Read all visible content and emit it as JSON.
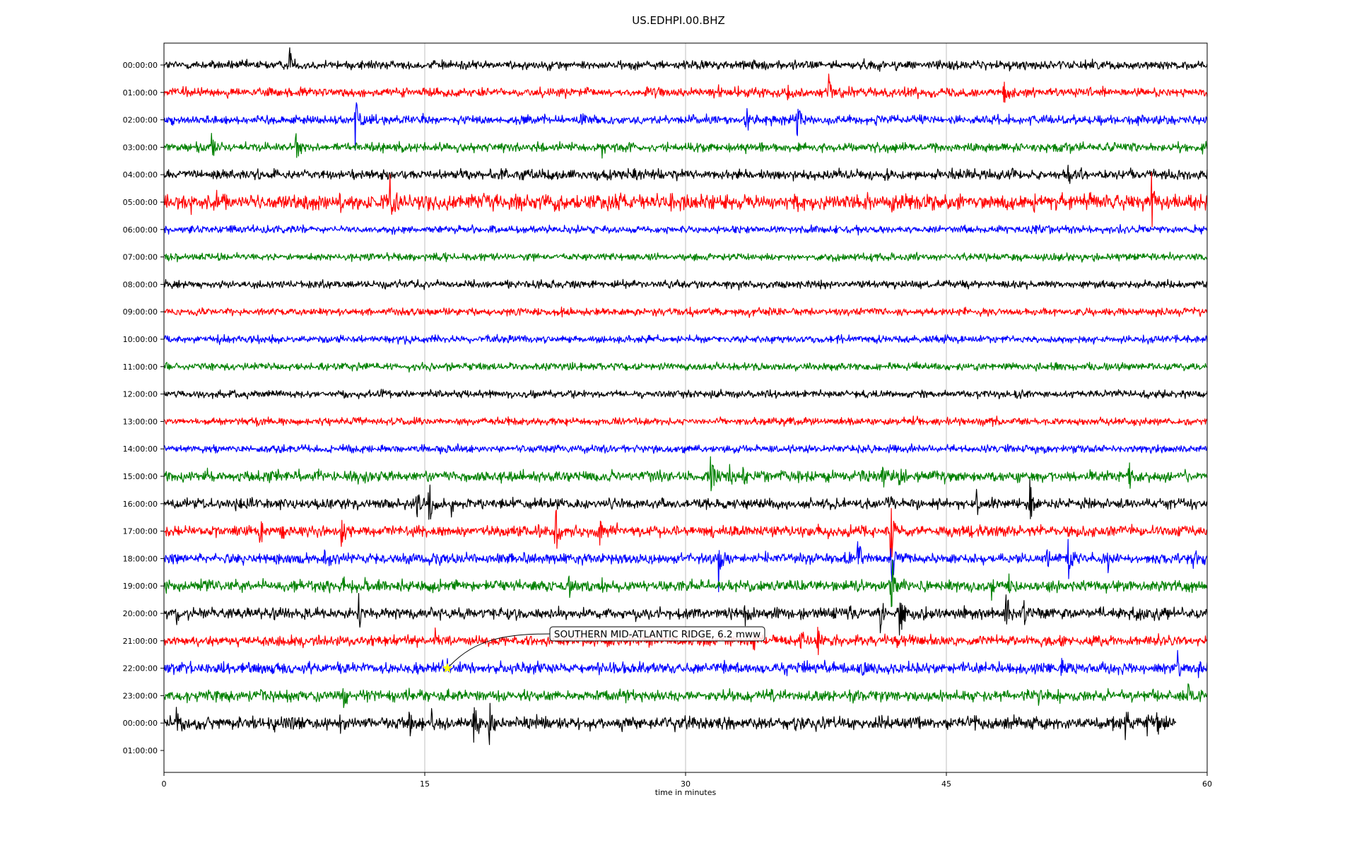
{
  "chart_data": {
    "type": "line",
    "title": "US.EDHPI.00.BHZ",
    "xlabel": "time in minutes",
    "ylabel": "",
    "xlim": [
      0,
      60
    ],
    "x_ticks": [
      "0",
      "15",
      "30",
      "45",
      "60"
    ],
    "grid": "vertical lines at x ticks",
    "colors": [
      "#000000",
      "#ff0000",
      "#0000ff",
      "#008000"
    ],
    "row_labels": [
      "00:00:00",
      "01:00:00",
      "02:00:00",
      "03:00:00",
      "04:00:00",
      "05:00:00",
      "06:00:00",
      "07:00:00",
      "08:00:00",
      "09:00:00",
      "10:00:00",
      "11:00:00",
      "12:00:00",
      "13:00:00",
      "14:00:00",
      "15:00:00",
      "16:00:00",
      "17:00:00",
      "18:00:00",
      "19:00:00",
      "20:00:00",
      "21:00:00",
      "22:00:00",
      "23:00:00",
      "00:00:00",
      "01:00:00"
    ],
    "traces": [
      {
        "row": 0,
        "end": 60,
        "noise": 0.18,
        "events": [
          {
            "t": 7.2,
            "amp": 0.55
          }
        ]
      },
      {
        "row": 1,
        "end": 60,
        "noise": 0.18,
        "events": [
          {
            "t": 31.9,
            "amp": 0.2
          },
          {
            "t": 35.9,
            "amp": 0.3
          },
          {
            "t": 38.2,
            "amp": 0.75
          },
          {
            "t": 48.3,
            "amp": 0.4
          }
        ]
      },
      {
        "row": 2,
        "end": 60,
        "noise": 0.18,
        "events": [
          {
            "t": 11.0,
            "amp": 0.9
          },
          {
            "t": 24.0,
            "amp": 0.45
          },
          {
            "t": 33.5,
            "amp": 0.5
          },
          {
            "t": 36.4,
            "amp": 0.55
          }
        ]
      },
      {
        "row": 3,
        "end": 60,
        "noise": 0.18,
        "events": [
          {
            "t": 2.7,
            "amp": 0.5
          },
          {
            "t": 7.6,
            "amp": 0.45
          },
          {
            "t": 25.1,
            "amp": 0.5
          }
        ]
      },
      {
        "row": 4,
        "end": 60,
        "noise": 0.2,
        "events": [
          {
            "t": 52.0,
            "amp": 0.3
          },
          {
            "t": 59.0,
            "amp": 0.25
          }
        ]
      },
      {
        "row": 5,
        "end": 60,
        "noise": 0.3,
        "events": [
          {
            "t": 1.5,
            "amp": 0.35
          },
          {
            "t": 3.0,
            "amp": 0.3
          },
          {
            "t": 8.1,
            "amp": 0.35
          },
          {
            "t": 13.0,
            "amp": 0.55
          },
          {
            "t": 16.0,
            "amp": 0.2
          },
          {
            "t": 29.1,
            "amp": 0.3
          },
          {
            "t": 32.4,
            "amp": 0.2
          },
          {
            "t": 40.3,
            "amp": 0.35
          },
          {
            "t": 56.8,
            "amp": 0.9
          }
        ]
      },
      {
        "row": 6,
        "end": 60,
        "noise": 0.15,
        "events": []
      },
      {
        "row": 7,
        "end": 60,
        "noise": 0.15,
        "events": []
      },
      {
        "row": 8,
        "end": 60,
        "noise": 0.15,
        "events": []
      },
      {
        "row": 9,
        "end": 60,
        "noise": 0.15,
        "events": []
      },
      {
        "row": 10,
        "end": 60,
        "noise": 0.15,
        "events": []
      },
      {
        "row": 11,
        "end": 60,
        "noise": 0.15,
        "events": []
      },
      {
        "row": 12,
        "end": 60,
        "noise": 0.15,
        "events": []
      },
      {
        "row": 13,
        "end": 60,
        "noise": 0.15,
        "events": []
      },
      {
        "row": 14,
        "end": 60,
        "noise": 0.15,
        "events": []
      },
      {
        "row": 15,
        "end": 60,
        "noise": 0.22,
        "events": [
          {
            "t": 31.4,
            "amp": 1.0
          },
          {
            "t": 32.5,
            "amp": 0.35
          },
          {
            "t": 33.3,
            "amp": 0.3
          },
          {
            "t": 36.5,
            "amp": 0.2
          },
          {
            "t": 41.3,
            "amp": 0.4
          },
          {
            "t": 42.3,
            "amp": 0.35
          },
          {
            "t": 55.5,
            "amp": 0.45
          }
        ]
      },
      {
        "row": 16,
        "end": 60,
        "noise": 0.2,
        "events": [
          {
            "t": 14.5,
            "amp": 0.6
          },
          {
            "t": 15.2,
            "amp": 0.75
          },
          {
            "t": 16.5,
            "amp": 0.3
          },
          {
            "t": 41.8,
            "amp": 0.25
          },
          {
            "t": 46.7,
            "amp": 0.55
          },
          {
            "t": 49.8,
            "amp": 0.8
          }
        ]
      },
      {
        "row": 17,
        "end": 60,
        "noise": 0.22,
        "events": [
          {
            "t": 5.5,
            "amp": 0.45
          },
          {
            "t": 6.8,
            "amp": 0.3
          },
          {
            "t": 10.2,
            "amp": 0.5
          },
          {
            "t": 22.5,
            "amp": 0.75
          },
          {
            "t": 25.0,
            "amp": 0.5
          },
          {
            "t": 41.8,
            "amp": 1.25
          }
        ]
      },
      {
        "row": 18,
        "end": 60,
        "noise": 0.2,
        "events": [
          {
            "t": 9.2,
            "amp": 0.25
          },
          {
            "t": 15.7,
            "amp": 0.3
          },
          {
            "t": 31.9,
            "amp": 0.85
          },
          {
            "t": 39.9,
            "amp": 0.6
          },
          {
            "t": 41.8,
            "amp": 1.0
          },
          {
            "t": 50.8,
            "amp": 0.3
          },
          {
            "t": 52.0,
            "amp": 0.55
          },
          {
            "t": 54.3,
            "amp": 0.45
          },
          {
            "t": 59.2,
            "amp": 0.35
          }
        ]
      },
      {
        "row": 19,
        "end": 60,
        "noise": 0.22,
        "events": [
          {
            "t": 2.5,
            "amp": 0.3
          },
          {
            "t": 10.3,
            "amp": 0.3
          },
          {
            "t": 11.6,
            "amp": 0.25
          },
          {
            "t": 23.3,
            "amp": 0.5
          },
          {
            "t": 25.2,
            "amp": 0.3
          },
          {
            "t": 30.9,
            "amp": 0.3
          },
          {
            "t": 41.8,
            "amp": 1.0
          },
          {
            "t": 47.6,
            "amp": 0.35
          },
          {
            "t": 48.6,
            "amp": 0.4
          }
        ]
      },
      {
        "row": 20,
        "end": 60,
        "noise": 0.22,
        "events": [
          {
            "t": 0.7,
            "amp": 0.45
          },
          {
            "t": 11.2,
            "amp": 0.5
          },
          {
            "t": 33.4,
            "amp": 0.3
          },
          {
            "t": 41.2,
            "amp": 0.55
          },
          {
            "t": 42.3,
            "amp": 0.9
          },
          {
            "t": 44.5,
            "amp": 0.25
          },
          {
            "t": 48.4,
            "amp": 0.6
          },
          {
            "t": 49.4,
            "amp": 0.55
          }
        ]
      },
      {
        "row": 21,
        "end": 60,
        "noise": 0.2,
        "events": [
          {
            "t": 15.6,
            "amp": 0.3
          },
          {
            "t": 27.9,
            "amp": 0.35
          },
          {
            "t": 29.3,
            "amp": 0.3
          },
          {
            "t": 33.9,
            "amp": 0.3
          },
          {
            "t": 36.6,
            "amp": 0.4
          },
          {
            "t": 37.6,
            "amp": 0.45
          },
          {
            "t": 42.0,
            "amp": 0.25
          }
        ]
      },
      {
        "row": 22,
        "end": 60,
        "noise": 0.22,
        "events": [
          {
            "t": 16.0,
            "amp": 0.25
          },
          {
            "t": 40.1,
            "amp": 0.3
          },
          {
            "t": 42.8,
            "amp": 0.3
          },
          {
            "t": 51.6,
            "amp": 0.35
          },
          {
            "t": 58.3,
            "amp": 0.5
          },
          {
            "t": 59.5,
            "amp": 0.35
          }
        ]
      },
      {
        "row": 23,
        "end": 60,
        "noise": 0.22,
        "events": [
          {
            "t": 9.8,
            "amp": 0.35
          },
          {
            "t": 10.3,
            "amp": 0.5
          },
          {
            "t": 50.3,
            "amp": 0.4
          },
          {
            "t": 58.9,
            "amp": 0.45
          }
        ]
      },
      {
        "row": 24,
        "end": 58.2,
        "noise": 0.25,
        "events": [
          {
            "t": 0.7,
            "amp": 0.45
          },
          {
            "t": 6.3,
            "amp": 0.35
          },
          {
            "t": 10.1,
            "amp": 0.35
          },
          {
            "t": 14.1,
            "amp": 0.35
          },
          {
            "t": 15.4,
            "amp": 0.4
          },
          {
            "t": 17.8,
            "amp": 0.9
          },
          {
            "t": 18.7,
            "amp": 0.8
          },
          {
            "t": 55.3,
            "amp": 0.55
          },
          {
            "t": 56.5,
            "amp": 0.4
          },
          {
            "t": 57.1,
            "amp": 0.55
          }
        ]
      }
    ],
    "annotation": {
      "text": "SOUTHERN MID-ATLANTIC RIDGE, 6.2 mww",
      "marker_row": 22,
      "marker_t": 16.3,
      "marker_color": "#ffff00"
    }
  }
}
